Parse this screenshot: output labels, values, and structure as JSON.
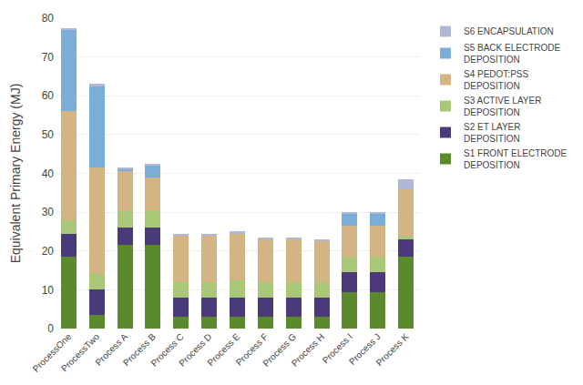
{
  "chart_data": {
    "type": "bar",
    "stacked": true,
    "categories": [
      "ProcessOne",
      "ProcessTwo",
      "Process A",
      "Process B",
      "Process C",
      "Process D",
      "Process E",
      "Process F",
      "Process G",
      "Process H",
      "Process I",
      "Process J",
      "Process K"
    ],
    "series": [
      {
        "name": "S1 FRONT ELECTRODE\nDEPOSITION",
        "color": "#5a8a2b",
        "values": [
          18.5,
          3.5,
          21.5,
          21.5,
          3.0,
          3.0,
          3.0,
          3.0,
          3.0,
          3.0,
          9.5,
          9.5,
          18.5
        ]
      },
      {
        "name": "S2 ET LAYER\nDEPOSITION",
        "color": "#4b3a7a",
        "values": [
          6.0,
          6.5,
          4.5,
          4.5,
          5.0,
          5.0,
          5.0,
          5.0,
          5.0,
          5.0,
          5.0,
          5.0,
          4.5
        ]
      },
      {
        "name": "S3 ACTIVE LAYER\nDEPOSITION",
        "color": "#a8c878",
        "values": [
          3.5,
          4.0,
          4.5,
          4.5,
          4.0,
          4.0,
          4.5,
          4.0,
          4.0,
          4.0,
          4.0,
          4.0,
          1.0
        ]
      },
      {
        "name": "S4 PEDOT:PSS\nDEPOSITION",
        "color": "#d4b483",
        "values": [
          28.0,
          27.5,
          10.0,
          8.5,
          12.0,
          12.0,
          12.0,
          11.0,
          11.0,
          10.5,
          8.0,
          8.0,
          12.0
        ]
      },
      {
        "name": "S5 BACK ELECTRODE\nDEPOSITION",
        "color": "#7aaed6",
        "values": [
          21.0,
          21.0,
          0.5,
          3.0,
          0.0,
          0.0,
          0.0,
          0.0,
          0.0,
          0.0,
          3.0,
          3.0,
          0.0
        ]
      },
      {
        "name": "S6 ENCAPSULATION",
        "color": "#b0b8d8",
        "values": [
          0.5,
          0.5,
          0.5,
          0.5,
          0.5,
          0.5,
          0.5,
          0.5,
          0.5,
          0.5,
          0.5,
          0.5,
          2.5
        ]
      }
    ],
    "ylabel": "Equivalent Primary Energy (MJ)",
    "ylim": [
      0,
      80
    ],
    "yticks": [
      0,
      10,
      20,
      30,
      40,
      50,
      60,
      70,
      80
    ],
    "grid": true,
    "legend": "right"
  }
}
